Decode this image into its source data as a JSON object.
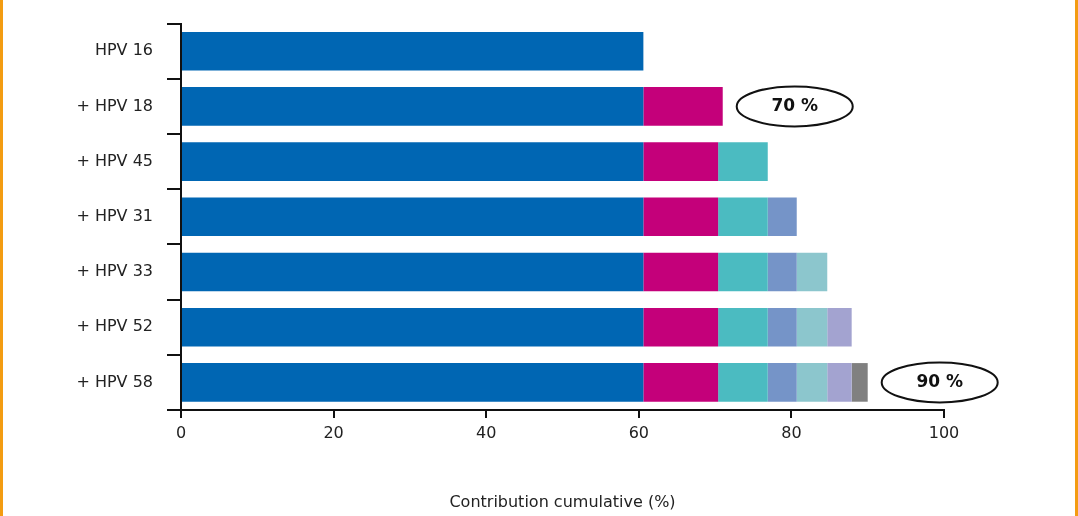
{
  "chart_data": {
    "type": "bar",
    "orientation": "horizontal",
    "stacked": true,
    "xlabel": "Contribution cumulative (%)",
    "categories": [
      "HPV 16",
      "+ HPV 18",
      "+ HPV 45",
      "+ HPV 31",
      "+ HPV 33",
      "+ HPV 52",
      "+ HPV 58"
    ],
    "series": [
      {
        "color": "#0066b3",
        "values": [
          60.6,
          60.6,
          60.6,
          60.6,
          60.6,
          60.6,
          60.6
        ]
      },
      {
        "color": "#c4007a",
        "values": [
          null,
          10.4,
          9.8,
          9.8,
          9.8,
          9.8,
          9.8
        ]
      },
      {
        "color": "#4bbbc1",
        "values": [
          null,
          null,
          6.5,
          6.5,
          6.5,
          6.5,
          6.5
        ]
      },
      {
        "color": "#7594c8",
        "values": [
          null,
          null,
          null,
          3.8,
          3.8,
          3.8,
          3.8
        ]
      },
      {
        "color": "#8cc6cd",
        "values": [
          null,
          null,
          null,
          null,
          4.0,
          4.0,
          4.0
        ]
      },
      {
        "color": "#a3a3d0",
        "values": [
          null,
          null,
          null,
          null,
          null,
          3.2,
          3.2
        ]
      },
      {
        "color": "#808080",
        "values": [
          null,
          null,
          null,
          null,
          null,
          null,
          2.1
        ]
      }
    ],
    "xlim": [
      0,
      100
    ],
    "xticks": [
      0,
      20,
      40,
      60,
      80,
      100
    ],
    "grid": false,
    "legend": false,
    "annotations": [
      {
        "text": "70 %",
        "x": 71,
        "y": "+ HPV 18"
      },
      {
        "text": "90 %",
        "x": 90,
        "y": "+ HPV 58"
      }
    ]
  }
}
